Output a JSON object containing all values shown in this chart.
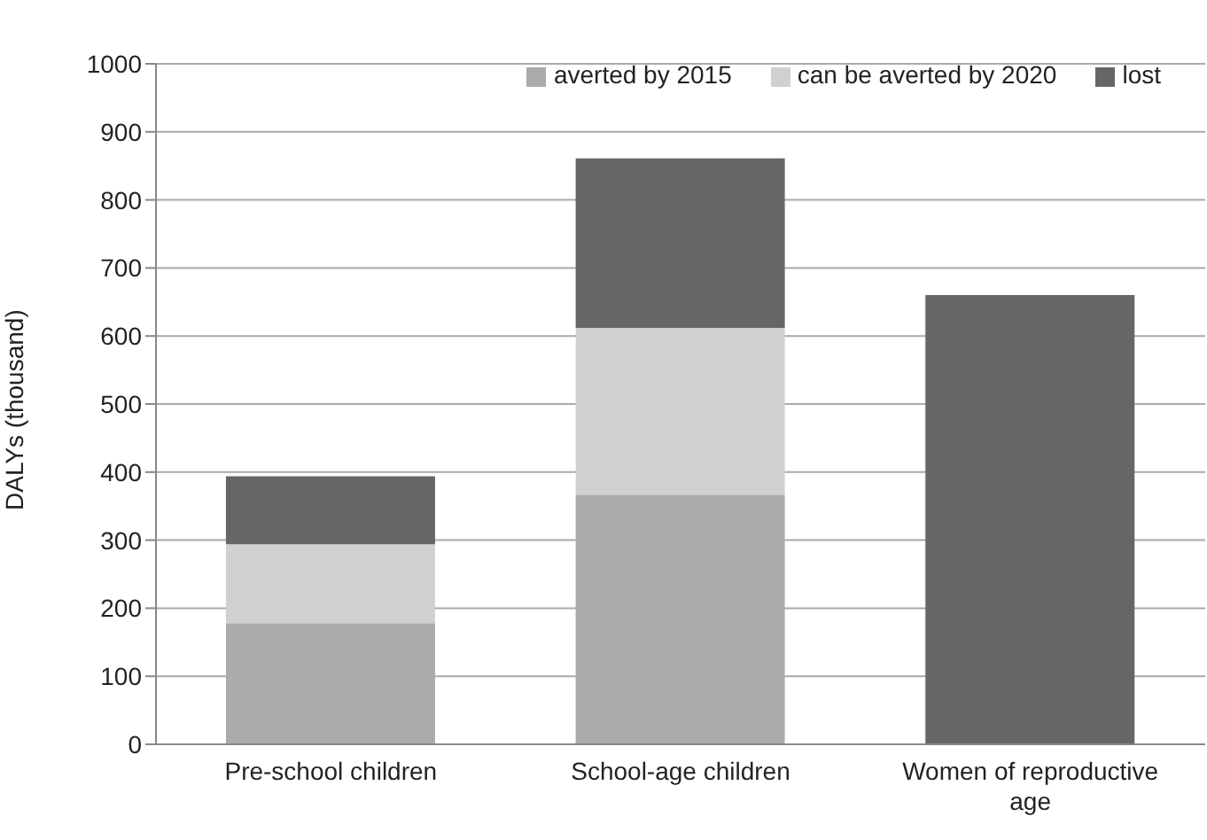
{
  "chart_data": {
    "type": "bar",
    "stacked": true,
    "ylabel": "DALYs (thousand)",
    "categories": [
      "Pre-school children",
      "School-age children",
      "Women of reproductive age"
    ],
    "series": [
      {
        "name": "averted by 2015",
        "color": "#ababab",
        "values": [
          178,
          367,
          null
        ]
      },
      {
        "name": "can be averted by 2020",
        "color": "#d0d0d0",
        "values": [
          116,
          245,
          null
        ]
      },
      {
        "name": "lost",
        "color": "#666666",
        "values": [
          100,
          249,
          660
        ]
      }
    ],
    "ylim": [
      0,
      1000
    ],
    "yticks": [
      0,
      100,
      200,
      300,
      400,
      500,
      600,
      700,
      800,
      900,
      1000
    ],
    "grid": "y",
    "legend": "top right"
  }
}
